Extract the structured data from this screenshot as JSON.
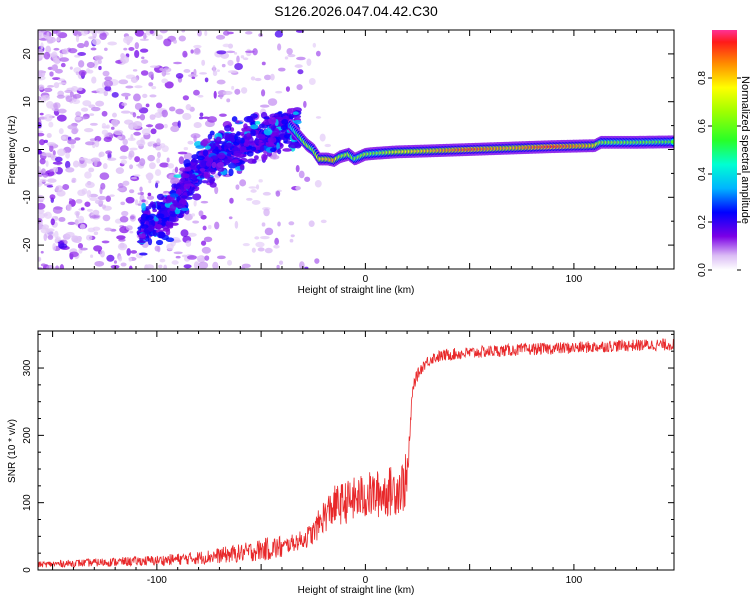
{
  "chart_data": [
    {
      "type": "heatmap",
      "title": "S126.2026.047.04.42.C30",
      "xlabel": "Height of straight line (km)",
      "ylabel": "Frequency (Hz)",
      "xlim": [
        -157,
        148
      ],
      "ylim": [
        -25,
        25
      ],
      "x_ticks": [
        -100,
        0,
        100
      ],
      "y_ticks": [
        -20,
        -10,
        0,
        10,
        20
      ],
      "colorbar": {
        "label": "Normalized spectral amplitude",
        "range": [
          0,
          1
        ],
        "ticks": [
          "0.0",
          "0.2",
          "0.4",
          "0.6",
          "0.8"
        ]
      },
      "ridge": {
        "x": [
          -105,
          -100,
          -95,
          -90,
          -85,
          -80,
          -75,
          -70,
          -65,
          -60,
          -55,
          -50,
          -45,
          -40,
          -36,
          -32,
          -28,
          -25,
          -22,
          -18,
          -15,
          -12,
          -8,
          -5,
          0,
          5,
          15,
          30,
          50,
          70,
          90,
          110,
          113,
          130,
          148
        ],
        "freq": [
          -16,
          -15,
          -14,
          -11,
          -7,
          -3,
          -2,
          -1,
          0,
          1,
          2,
          2.5,
          3,
          4,
          5,
          3,
          1,
          0,
          -2,
          -2,
          -2.3,
          -1.5,
          -1,
          -2,
          -1,
          -0.8,
          -0.5,
          -0.3,
          0,
          0.3,
          0.6,
          0.8,
          1.5,
          1.5,
          1.6
        ],
        "amplitude": [
          0.3,
          0.3,
          0.3,
          0.28,
          0.28,
          0.26,
          0.25,
          0.25,
          0.25,
          0.24,
          0.24,
          0.24,
          0.3,
          0.35,
          0.3,
          0.55,
          0.7,
          0.62,
          0.8,
          0.8,
          0.85,
          0.65,
          0.7,
          0.6,
          0.68,
          0.62,
          0.75,
          0.8,
          0.92,
          0.82,
          0.95,
          0.8,
          0.65,
          0.62,
          0.58
        ]
      }
    },
    {
      "type": "line",
      "xlabel": "Height of straight line (km)",
      "ylabel": "SNR (10 * v/v)",
      "xlim": [
        -157,
        148
      ],
      "ylim": [
        0,
        355
      ],
      "x_ticks": [
        -100,
        0,
        100
      ],
      "y_ticks": [
        0,
        100,
        200,
        300
      ],
      "color": "#e8282a",
      "series": [
        {
          "x": [
            -157,
            -140,
            -120,
            -100,
            -80,
            -60,
            -50,
            -40,
            -35,
            -30,
            -25,
            -20,
            -15,
            -10,
            -5,
            0,
            5,
            10,
            15,
            18,
            20,
            21,
            22,
            23,
            25,
            28,
            32,
            40,
            60,
            80,
            100,
            120,
            148
          ],
          "values": [
            8,
            10,
            12,
            14,
            18,
            25,
            30,
            34,
            40,
            45,
            55,
            80,
            95,
            100,
            105,
            110,
            112,
            115,
            120,
            125,
            135,
            175,
            240,
            275,
            290,
            305,
            315,
            320,
            325,
            328,
            330,
            333,
            335
          ]
        }
      ]
    }
  ]
}
